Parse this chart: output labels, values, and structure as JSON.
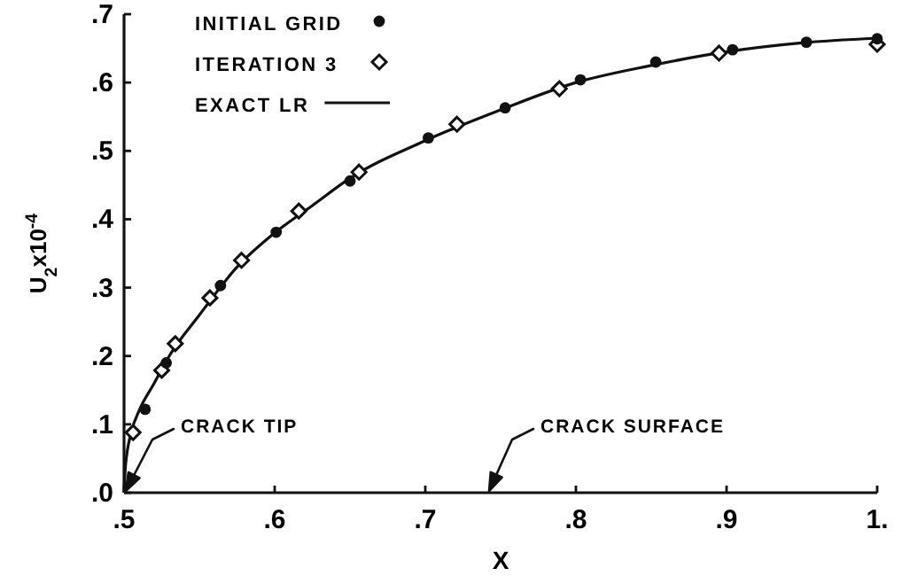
{
  "chart_data": {
    "type": "scatter",
    "xlabel": "X",
    "ylabel": "U$_{2}$x10$^{-4}$",
    "xlim": [
      0.5,
      1.0
    ],
    "ylim": [
      0,
      0.7
    ],
    "xticks": [
      {
        "value": 0.5,
        "label": ".5"
      },
      {
        "value": 0.6,
        "label": ".6"
      },
      {
        "value": 0.7,
        "label": ".7"
      },
      {
        "value": 0.8,
        "label": ".8"
      },
      {
        "value": 0.9,
        "label": ".9"
      },
      {
        "value": 1.0,
        "label": "1."
      }
    ],
    "yticks": [
      {
        "value": 0,
        "label": ".0"
      },
      {
        "value": 0.1,
        "label": ".1"
      },
      {
        "value": 0.2,
        "label": ".2"
      },
      {
        "value": 0.3,
        "label": ".3"
      },
      {
        "value": 0.4,
        "label": ".4"
      },
      {
        "value": 0.5,
        "label": ".5"
      },
      {
        "value": 0.6,
        "label": ".6"
      },
      {
        "value": 0.7,
        "label": ".7"
      }
    ],
    "grid": false,
    "legend": "top",
    "series": [
      {
        "name": "INITIAL GRID",
        "marker": "circle",
        "color": "#111111",
        "x": [
          0.514,
          0.528,
          0.564,
          0.601,
          0.65,
          0.702,
          0.753,
          0.803,
          0.853,
          0.904,
          0.953,
          1.0
        ],
        "values": [
          0.122,
          0.19,
          0.303,
          0.381,
          0.456,
          0.519,
          0.563,
          0.604,
          0.63,
          0.648,
          0.659,
          0.664
        ]
      },
      {
        "name": "ITERATION 3",
        "marker": "diamond",
        "color": "#111111",
        "x": [
          0.506,
          0.525,
          0.534,
          0.557,
          0.578,
          0.616,
          0.656,
          0.721,
          0.789,
          0.895,
          1.0
        ],
        "values": [
          0.088,
          0.179,
          0.218,
          0.285,
          0.34,
          0.412,
          0.469,
          0.539,
          0.591,
          0.643,
          0.656
        ]
      },
      {
        "name": "EXACT LR",
        "type": "line",
        "marker": "none",
        "line_style": "solid",
        "color": "#111111",
        "x": [
          0.5,
          0.501,
          0.505,
          0.51,
          0.52,
          0.53,
          0.55,
          0.575,
          0.6,
          0.625,
          0.65,
          0.7,
          0.75,
          0.8,
          0.85,
          0.9,
          0.95,
          1.0
        ],
        "values": [
          0,
          0.04,
          0.09,
          0.12,
          0.16,
          0.2,
          0.26,
          0.33,
          0.38,
          0.42,
          0.46,
          0.515,
          0.56,
          0.6,
          0.625,
          0.645,
          0.658,
          0.665
        ]
      }
    ],
    "annotations": [
      "CRACK TIP",
      "CRACK SURFACE"
    ]
  }
}
